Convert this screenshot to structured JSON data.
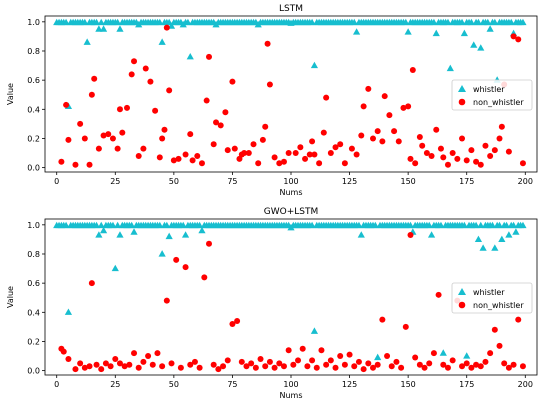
{
  "chart_data": [
    {
      "type": "scatter",
      "title": "LSTM",
      "xlabel": "Nums",
      "ylabel": "Value",
      "xlim": [
        -5,
        205
      ],
      "ylim": [
        -0.03,
        1.04
      ],
      "xticks": [
        0,
        25,
        50,
        75,
        100,
        125,
        150,
        175,
        200
      ],
      "yticks": [
        0.0,
        0.2,
        0.4,
        0.6,
        0.8,
        1.0
      ],
      "legend": "center-right",
      "series": [
        {
          "name": "whistler",
          "marker": "triangle",
          "color": "#17becf",
          "base_value": 0.995,
          "outliers": [
            [
              5,
              0.42
            ],
            [
              13,
              0.86
            ],
            [
              18,
              0.95
            ],
            [
              20,
              0.95
            ],
            [
              27,
              0.95
            ],
            [
              35,
              0.98
            ],
            [
              45,
              0.86
            ],
            [
              49,
              0.97
            ],
            [
              54,
              0.98
            ],
            [
              57,
              0.76
            ],
            [
              68,
              0.98
            ],
            [
              86,
              0.98
            ],
            [
              100,
              0.99
            ],
            [
              110,
              0.7
            ],
            [
              128,
              0.93
            ],
            [
              150,
              0.93
            ],
            [
              162,
              0.92
            ],
            [
              168,
              0.68
            ],
            [
              174,
              0.92
            ],
            [
              178,
              0.84
            ],
            [
              181,
              0.82
            ],
            [
              185,
              0.95
            ],
            [
              188,
              0.6
            ],
            [
              195,
              0.92
            ]
          ]
        },
        {
          "name": "non_whistler",
          "marker": "circle",
          "color": "#ff0000",
          "points": [
            [
              2,
              0.04
            ],
            [
              4,
              0.43
            ],
            [
              5,
              0.19
            ],
            [
              8,
              0.02
            ],
            [
              10,
              0.3
            ],
            [
              12,
              0.2
            ],
            [
              14,
              0.02
            ],
            [
              15,
              0.5
            ],
            [
              16,
              0.61
            ],
            [
              18,
              0.13
            ],
            [
              20,
              0.22
            ],
            [
              22,
              0.23
            ],
            [
              24,
              0.2
            ],
            [
              26,
              0.13
            ],
            [
              27,
              0.4
            ],
            [
              28,
              0.24
            ],
            [
              30,
              0.41
            ],
            [
              32,
              0.64
            ],
            [
              33,
              0.73
            ],
            [
              35,
              0.08
            ],
            [
              37,
              0.13
            ],
            [
              38,
              0.68
            ],
            [
              40,
              0.59
            ],
            [
              42,
              0.39
            ],
            [
              44,
              0.07
            ],
            [
              45,
              0.2
            ],
            [
              46,
              0.26
            ],
            [
              47,
              0.96
            ],
            [
              48,
              0.53
            ],
            [
              50,
              0.05
            ],
            [
              52,
              0.06
            ],
            [
              55,
              0.09
            ],
            [
              57,
              0.23
            ],
            [
              58,
              0.05
            ],
            [
              60,
              0.08
            ],
            [
              62,
              0.03
            ],
            [
              64,
              0.46
            ],
            [
              65,
              0.76
            ],
            [
              67,
              0.16
            ],
            [
              68,
              0.31
            ],
            [
              70,
              0.29
            ],
            [
              72,
              0.38
            ],
            [
              73,
              0.12
            ],
            [
              75,
              0.59
            ],
            [
              76,
              0.13
            ],
            [
              78,
              0.06
            ],
            [
              79,
              0.09
            ],
            [
              80,
              0.1
            ],
            [
              82,
              0.1
            ],
            [
              84,
              0.16
            ],
            [
              86,
              0.03
            ],
            [
              88,
              0.19
            ],
            [
              89,
              0.28
            ],
            [
              90,
              0.85
            ],
            [
              91,
              0.57
            ],
            [
              93,
              0.07
            ],
            [
              95,
              0.03
            ],
            [
              97,
              0.04
            ],
            [
              99,
              0.1
            ],
            [
              102,
              0.1
            ],
            [
              104,
              0.14
            ],
            [
              106,
              0.06
            ],
            [
              108,
              0.09
            ],
            [
              109,
              0.18
            ],
            [
              110,
              0.09
            ],
            [
              112,
              0.03
            ],
            [
              114,
              0.24
            ],
            [
              115,
              0.48
            ],
            [
              117,
              0.1
            ],
            [
              119,
              0.14
            ],
            [
              121,
              0.16
            ],
            [
              123,
              0.03
            ],
            [
              126,
              0.13
            ],
            [
              128,
              0.09
            ],
            [
              130,
              0.22
            ],
            [
              131,
              0.42
            ],
            [
              133,
              0.54
            ],
            [
              135,
              0.2
            ],
            [
              137,
              0.25
            ],
            [
              139,
              0.18
            ],
            [
              140,
              0.49
            ],
            [
              142,
              0.36
            ],
            [
              144,
              0.25
            ],
            [
              146,
              0.18
            ],
            [
              148,
              0.41
            ],
            [
              150,
              0.42
            ],
            [
              151,
              0.06
            ],
            [
              152,
              0.67
            ],
            [
              153,
              0.03
            ],
            [
              155,
              0.21
            ],
            [
              156,
              0.15
            ],
            [
              158,
              0.1
            ],
            [
              160,
              0.08
            ],
            [
              162,
              0.26
            ],
            [
              164,
              0.13
            ],
            [
              165,
              0.07
            ],
            [
              167,
              0.02
            ],
            [
              169,
              0.1
            ],
            [
              171,
              0.06
            ],
            [
              173,
              0.2
            ],
            [
              175,
              0.05
            ],
            [
              177,
              0.12
            ],
            [
              179,
              0.04
            ],
            [
              181,
              0.02
            ],
            [
              183,
              0.15
            ],
            [
              185,
              0.08
            ],
            [
              187,
              0.12
            ],
            [
              189,
              0.2
            ],
            [
              190,
              0.28
            ],
            [
              191,
              0.57
            ],
            [
              193,
              0.11
            ],
            [
              195,
              0.9
            ],
            [
              197,
              0.88
            ],
            [
              199,
              0.03
            ]
          ]
        }
      ]
    },
    {
      "type": "scatter",
      "title": "GWO+LSTM",
      "xlabel": "Nums",
      "ylabel": "Value",
      "xlim": [
        -5,
        205
      ],
      "ylim": [
        -0.03,
        1.04
      ],
      "xticks": [
        0,
        25,
        50,
        75,
        100,
        125,
        150,
        175,
        200
      ],
      "yticks": [
        0.0,
        0.2,
        0.4,
        0.6,
        0.8,
        1.0
      ],
      "legend": "center-right",
      "series": [
        {
          "name": "whistler",
          "marker": "triangle",
          "color": "#17becf",
          "base_value": 0.995,
          "outliers": [
            [
              5,
              0.4
            ],
            [
              18,
              0.93
            ],
            [
              20,
              0.96
            ],
            [
              25,
              0.7
            ],
            [
              27,
              0.93
            ],
            [
              33,
              0.95
            ],
            [
              45,
              0.8
            ],
            [
              48,
              0.92
            ],
            [
              55,
              0.93
            ],
            [
              62,
              0.96
            ],
            [
              100,
              0.98
            ],
            [
              110,
              0.27
            ],
            [
              130,
              0.93
            ],
            [
              137,
              0.09
            ],
            [
              152,
              0.95
            ],
            [
              160,
              0.93
            ],
            [
              165,
              0.12
            ],
            [
              175,
              0.1
            ],
            [
              180,
              0.9
            ],
            [
              182,
              0.84
            ],
            [
              187,
              0.84
            ],
            [
              190,
              0.9
            ],
            [
              193,
              0.93
            ],
            [
              196,
              0.95
            ]
          ]
        },
        {
          "name": "non_whistler",
          "marker": "circle",
          "color": "#ff0000",
          "points": [
            [
              2,
              0.15
            ],
            [
              3,
              0.13
            ],
            [
              5,
              0.08
            ],
            [
              8,
              0.01
            ],
            [
              10,
              0.05
            ],
            [
              12,
              0.02
            ],
            [
              14,
              0.03
            ],
            [
              15,
              0.6
            ],
            [
              17,
              0.04
            ],
            [
              19,
              0.01
            ],
            [
              21,
              0.05
            ],
            [
              23,
              0.03
            ],
            [
              25,
              0.08
            ],
            [
              27,
              0.05
            ],
            [
              29,
              0.03
            ],
            [
              31,
              0.04
            ],
            [
              33,
              0.12
            ],
            [
              35,
              0.02
            ],
            [
              37,
              0.06
            ],
            [
              39,
              0.1
            ],
            [
              41,
              0.04
            ],
            [
              43,
              0.12
            ],
            [
              45,
              0.03
            ],
            [
              47,
              0.48
            ],
            [
              49,
              0.05
            ],
            [
              51,
              0.76
            ],
            [
              53,
              0.02
            ],
            [
              55,
              0.71
            ],
            [
              57,
              0.04
            ],
            [
              59,
              0.06
            ],
            [
              61,
              0.02
            ],
            [
              63,
              0.64
            ],
            [
              65,
              0.87
            ],
            [
              67,
              0.04
            ],
            [
              69,
              0.01
            ],
            [
              71,
              0.03
            ],
            [
              73,
              0.07
            ],
            [
              75,
              0.32
            ],
            [
              77,
              0.34
            ],
            [
              79,
              0.06
            ],
            [
              81,
              0.03
            ],
            [
              83,
              0.05
            ],
            [
              85,
              0.02
            ],
            [
              87,
              0.08
            ],
            [
              89,
              0.03
            ],
            [
              91,
              0.06
            ],
            [
              93,
              0.02
            ],
            [
              95,
              0.05
            ],
            [
              97,
              0.03
            ],
            [
              99,
              0.14
            ],
            [
              101,
              0.04
            ],
            [
              103,
              0.07
            ],
            [
              105,
              0.15
            ],
            [
              107,
              0.03
            ],
            [
              109,
              0.07
            ],
            [
              111,
              0.02
            ],
            [
              113,
              0.14
            ],
            [
              115,
              0.04
            ],
            [
              117,
              0.07
            ],
            [
              119,
              0.02
            ],
            [
              121,
              0.1
            ],
            [
              123,
              0.04
            ],
            [
              125,
              0.11
            ],
            [
              127,
              0.03
            ],
            [
              129,
              0.06
            ],
            [
              131,
              0.01
            ],
            [
              133,
              0.05
            ],
            [
              135,
              0.02
            ],
            [
              137,
              0.04
            ],
            [
              139,
              0.35
            ],
            [
              141,
              0.1
            ],
            [
              143,
              0.03
            ],
            [
              145,
              0.06
            ],
            [
              147,
              0.02
            ],
            [
              149,
              0.3
            ],
            [
              151,
              0.93
            ],
            [
              153,
              0.09
            ],
            [
              155,
              0.04
            ],
            [
              157,
              0.02
            ],
            [
              159,
              0.05
            ],
            [
              161,
              0.12
            ],
            [
              163,
              0.52
            ],
            [
              165,
              0.04
            ],
            [
              167,
              0.02
            ],
            [
              169,
              0.07
            ],
            [
              171,
              0.48
            ],
            [
              173,
              0.03
            ],
            [
              175,
              0.05
            ],
            [
              177,
              0.02
            ],
            [
              179,
              0.04
            ],
            [
              181,
              0.03
            ],
            [
              183,
              0.06
            ],
            [
              185,
              0.12
            ],
            [
              187,
              0.28
            ],
            [
              189,
              0.17
            ],
            [
              191,
              0.05
            ],
            [
              193,
              0.02
            ],
            [
              195,
              0.04
            ],
            [
              197,
              0.35
            ],
            [
              199,
              0.03
            ]
          ]
        }
      ]
    }
  ]
}
